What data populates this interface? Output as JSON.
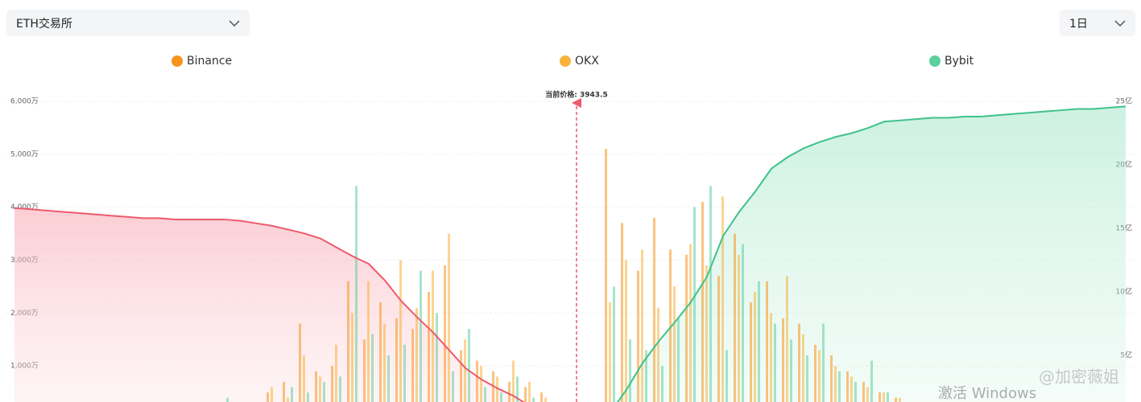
{
  "controls": {
    "exchange_select": "ETH交易所",
    "period_select": "1日"
  },
  "chart_data": {
    "type": "depth",
    "price_label": "当前价格: 3943.5",
    "categories": [
      null,
      null,
      null,
      null,
      null,
      null,
      null,
      null,
      null,
      null,
      null,
      null,
      null,
      null,
      null,
      null,
      null,
      null,
      null,
      null,
      null,
      null,
      null,
      null,
      null,
      null,
      null,
      null,
      null,
      null,
      null,
      null,
      null,
      null,
      null,
      null,
      null,
      null,
      null,
      null,
      null,
      null,
      null,
      null,
      null,
      null,
      null,
      null,
      null,
      null,
      null,
      null,
      null,
      null,
      null,
      null,
      null,
      null,
      null,
      null,
      null,
      null,
      null,
      null,
      null,
      null,
      null,
      null,
      null,
      null
    ],
    "series": [
      {
        "name": "Binance",
        "color": "#f7931a",
        "values": [
          null,
          null,
          null,
          null,
          null,
          null,
          null,
          null,
          null,
          null,
          null,
          null,
          null,
          200,
          null,
          300,
          500,
          700,
          1800,
          900,
          1000,
          2600,
          1500,
          2200,
          1900,
          1700,
          2400,
          2900,
          1300,
          1100,
          900,
          700,
          600,
          500,
          null,
          null,
          null,
          5100,
          3700,
          2800,
          3800,
          3200,
          3100,
          4100,
          2700,
          3500,
          2200,
          2600,
          1900,
          1800,
          1400,
          1200,
          900,
          700,
          500,
          400,
          300,
          null,
          null,
          null,
          null,
          null,
          null,
          null,
          null,
          null,
          null,
          null,
          null,
          null
        ]
      },
      {
        "name": "OKX",
        "color": "#f7b23a",
        "values": [
          null,
          null,
          null,
          null,
          null,
          null,
          null,
          null,
          null,
          null,
          null,
          null,
          null,
          100,
          150,
          250,
          600,
          400,
          1200,
          800,
          1400,
          2000,
          2600,
          1800,
          3000,
          2100,
          2800,
          3500,
          1500,
          1000,
          800,
          1100,
          700,
          400,
          null,
          null,
          null,
          2200,
          3000,
          3200,
          2100,
          2500,
          3300,
          2900,
          4200,
          3100,
          2400,
          2000,
          2700,
          1600,
          1300,
          1000,
          800,
          600,
          500,
          400,
          200,
          null,
          null,
          null,
          null,
          null,
          null,
          null,
          null,
          null,
          null,
          null,
          null,
          null
        ]
      },
      {
        "name": "Bybit",
        "color": "#5ccf9e",
        "values": [
          null,
          null,
          null,
          null,
          null,
          null,
          null,
          null,
          null,
          null,
          null,
          null,
          null,
          400,
          null,
          200,
          300,
          600,
          500,
          700,
          800,
          4400,
          1600,
          1200,
          1400,
          2800,
          2000,
          900,
          1700,
          600,
          500,
          800,
          400,
          300,
          null,
          null,
          null,
          2500,
          1500,
          1300,
          1000,
          1900,
          4000,
          4400,
          1300,
          3300,
          2600,
          1800,
          1500,
          1200,
          1800,
          900,
          700,
          1100,
          500,
          300,
          200,
          null,
          null,
          null,
          null,
          null,
          null,
          null,
          null,
          null,
          null,
          null,
          null,
          null
        ]
      }
    ],
    "bid_depth": {
      "color": "#ec5b6c",
      "axis": "y2",
      "values": [
        16.6,
        16.5,
        16.4,
        16.3,
        16.2,
        16.1,
        16.0,
        15.9,
        15.8,
        15.8,
        15.7,
        15.7,
        15.7,
        15.7,
        15.6,
        15.4,
        15.2,
        14.9,
        14.6,
        14.2,
        13.5,
        12.8,
        12.2,
        10.9,
        9.3,
        8.0,
        6.8,
        5.4,
        4.0,
        3.1,
        2.4,
        1.8,
        1.0,
        0.3,
        null,
        null,
        null,
        null,
        null,
        null,
        null,
        null,
        null,
        null,
        null,
        null,
        null,
        null,
        null,
        null,
        null,
        null,
        null,
        null,
        null,
        null,
        null,
        null,
        null,
        null,
        null,
        null,
        null,
        null,
        null,
        null,
        null,
        null,
        null,
        null
      ]
    },
    "ask_depth": {
      "color": "#3fc28a",
      "axis": "y2",
      "values": [
        null,
        null,
        null,
        null,
        null,
        null,
        null,
        null,
        null,
        null,
        null,
        null,
        null,
        null,
        null,
        null,
        null,
        null,
        null,
        null,
        null,
        null,
        null,
        null,
        null,
        null,
        null,
        null,
        null,
        null,
        null,
        null,
        null,
        null,
        null,
        null,
        null,
        0.5,
        2.3,
        4.4,
        6.1,
        7.6,
        9.2,
        11.2,
        14.4,
        16.3,
        17.9,
        19.7,
        20.6,
        21.3,
        21.8,
        22.2,
        22.5,
        22.9,
        23.4,
        23.5,
        23.6,
        23.7,
        23.7,
        23.8,
        23.8,
        23.9,
        24.0,
        24.1,
        24.2,
        24.3,
        24.4,
        24.4,
        24.5,
        24.6
      ]
    },
    "ylim": [
      0,
      6000
    ],
    "yticks": [
      {
        "value": 1000,
        "label": "1,000万"
      },
      {
        "value": 2000,
        "label": "2,000万"
      },
      {
        "value": 3000,
        "label": "3,000万"
      },
      {
        "value": 4000,
        "label": "4,000万"
      },
      {
        "value": 5000,
        "label": "5,000万"
      },
      {
        "value": 6000,
        "label": "6,000万"
      }
    ],
    "y2lim": [
      0,
      25
    ],
    "y2ticks": [
      {
        "value": 5,
        "label": "5亿"
      },
      {
        "value": 10,
        "label": "10亿"
      },
      {
        "value": 15,
        "label": "15亿"
      },
      {
        "value": 20,
        "label": "20亿"
      },
      {
        "value": 25,
        "label": "25亿"
      }
    ],
    "grid": true
  },
  "overlay": {
    "activation": "激活 Windows",
    "watermark": "@加密薇姐"
  }
}
